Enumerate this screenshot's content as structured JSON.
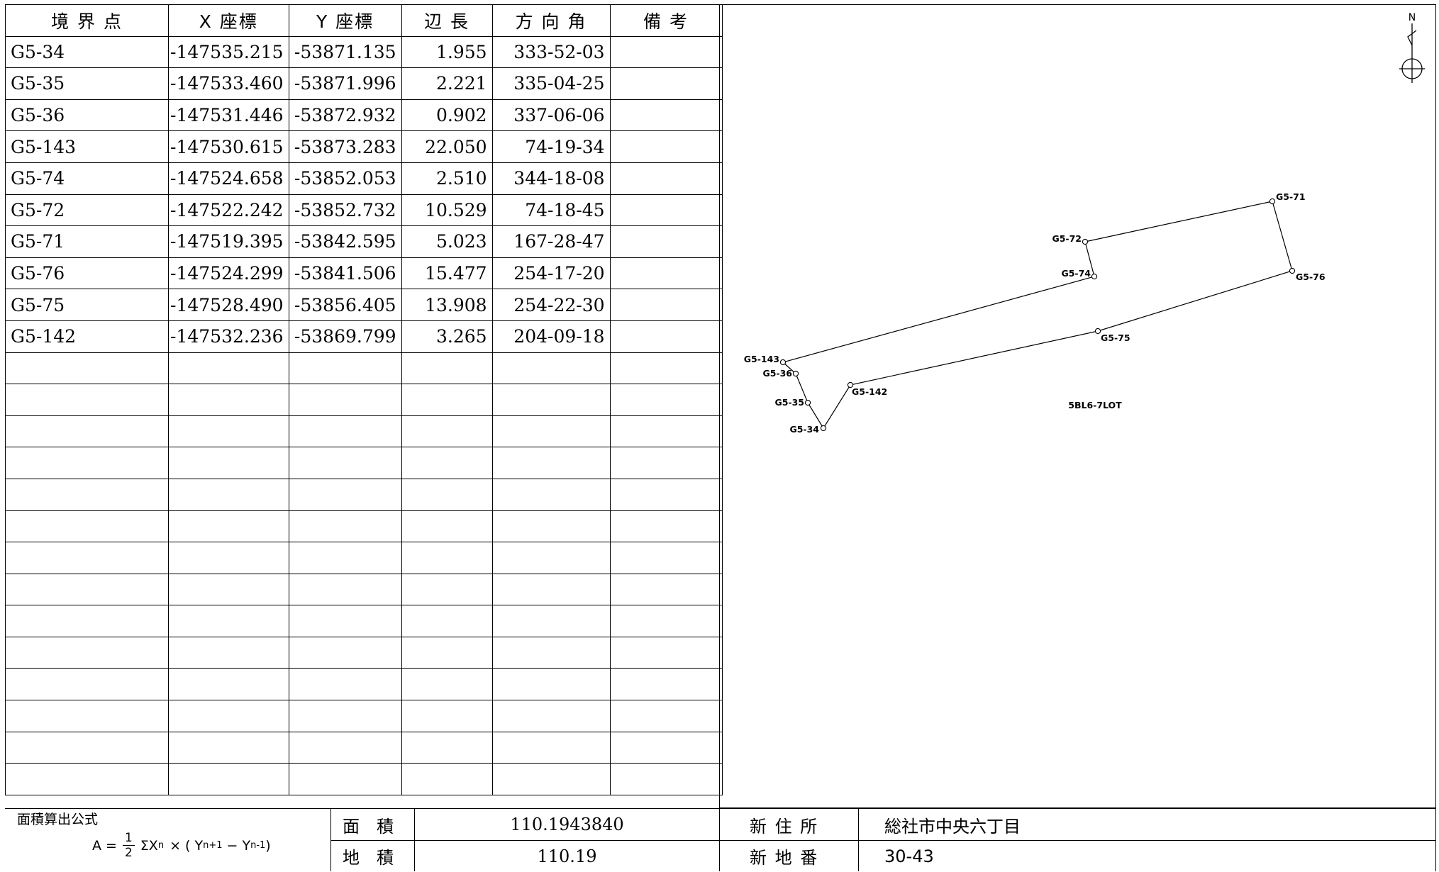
{
  "table": {
    "headers": [
      "境 界 点",
      "X 座標",
      "Y 座標",
      "辺 長",
      "方 向 角",
      "備 考"
    ],
    "rows": [
      [
        "G5-34",
        "-147535.215",
        "-53871.135",
        "1.955",
        "333-52-03",
        ""
      ],
      [
        "G5-35",
        "-147533.460",
        "-53871.996",
        "2.221",
        "335-04-25",
        ""
      ],
      [
        "G5-36",
        "-147531.446",
        "-53872.932",
        "0.902",
        "337-06-06",
        ""
      ],
      [
        "G5-143",
        "-147530.615",
        "-53873.283",
        "22.050",
        "74-19-34",
        ""
      ],
      [
        "G5-74",
        "-147524.658",
        "-53852.053",
        "2.510",
        "344-18-08",
        ""
      ],
      [
        "G5-72",
        "-147522.242",
        "-53852.732",
        "10.529",
        "74-18-45",
        ""
      ],
      [
        "G5-71",
        "-147519.395",
        "-53842.595",
        "5.023",
        "167-28-47",
        ""
      ],
      [
        "G5-76",
        "-147524.299",
        "-53841.506",
        "15.477",
        "254-17-20",
        ""
      ],
      [
        "G5-75",
        "-147528.490",
        "-53856.405",
        "13.908",
        "254-22-30",
        ""
      ],
      [
        "G5-142",
        "-147532.236",
        "-53869.799",
        "3.265",
        "204-09-18",
        ""
      ]
    ],
    "empty_rows": 14
  },
  "plan": {
    "north_label": "N",
    "lot_label": "5BL6-7LOT",
    "points": [
      "G5-34",
      "G5-35",
      "G5-36",
      "G5-143",
      "G5-74",
      "G5-72",
      "G5-71",
      "G5-76",
      "G5-75",
      "G5-142"
    ]
  },
  "footer": {
    "formula_title": "面積算出公式",
    "formula_lhs": "A =",
    "formula_num": "1",
    "formula_den": "2",
    "formula_sum": "ΣX",
    "formula_sub_n": "n",
    "formula_times": "× ( Y",
    "formula_sub_plus": "n+1",
    "formula_minus": " − Y",
    "formula_sub_minus": "n-1",
    "formula_close": " )",
    "area_label": "面　積",
    "area_value": "110.1943840",
    "land_area_label": "地　積",
    "land_area_value": "110.19",
    "new_address_label": "新 住 所",
    "new_address_value": "総社市中央六丁目",
    "new_lot_label": "新 地 番",
    "new_lot_value": "30-43"
  }
}
